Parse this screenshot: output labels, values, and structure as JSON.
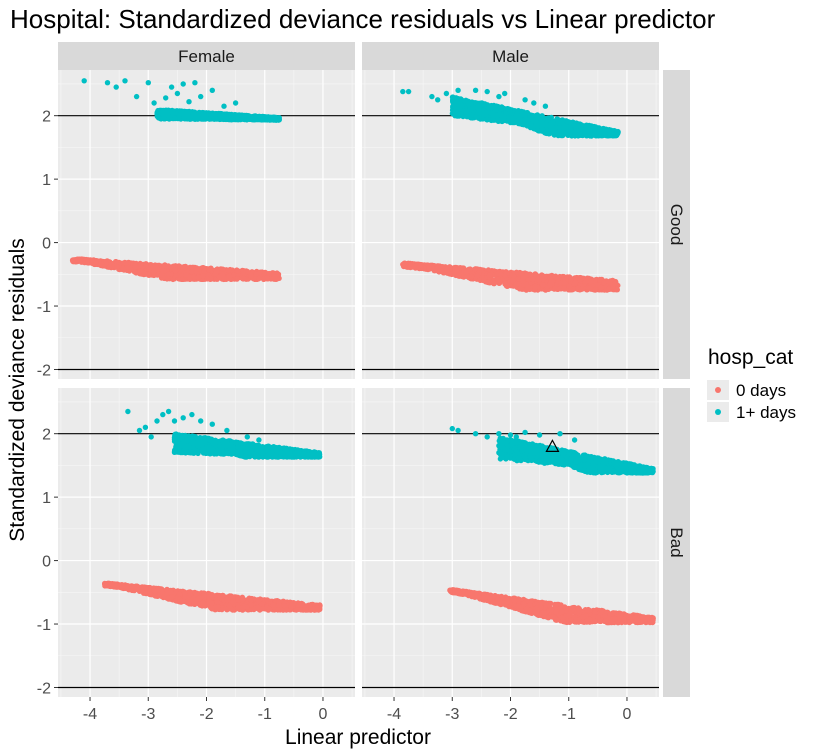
{
  "chart_data": {
    "type": "scatter",
    "title": "Hospital: Standardized deviance residuals vs Linear predictor",
    "xlabel": "Linear predictor",
    "ylabel": "Standardized deviance residuals",
    "xlim": [
      -4.55,
      0.55
    ],
    "ylim": [
      -2.15,
      2.72
    ],
    "x_ticks": [
      -4,
      -3,
      -2,
      -1,
      0
    ],
    "y_ticks": [
      -2,
      -1,
      0,
      1,
      2
    ],
    "reference_lines_y": [
      -2,
      2
    ],
    "col_facets": [
      "Female",
      "Male"
    ],
    "row_facets": [
      "Good",
      "Bad"
    ],
    "legend": {
      "title": "hosp_cat",
      "position": "right",
      "entries": [
        {
          "label": "0 days",
          "color": "#F8766D"
        },
        {
          "label": "1+ days",
          "color": "#00BFC4"
        }
      ]
    },
    "panels": [
      {
        "col": "Female",
        "row": "Good",
        "series": [
          {
            "name": "0 days",
            "color": "#F8766D",
            "band": {
              "x": [
                -4.3,
                -0.75
              ],
              "y_top": [
                -0.25,
                -0.48
              ],
              "y_bottom": [
                -0.3,
                -0.58
              ],
              "bottom_floor": -0.58
            }
          },
          {
            "name": "1+ days",
            "color": "#00BFC4",
            "band": {
              "x": [
                -2.85,
                -0.75
              ],
              "y_top": [
                2.1,
                1.97
              ],
              "y_bottom": [
                1.95,
                1.93
              ]
            },
            "outliers": [
              [
                -4.1,
                2.55
              ],
              [
                -3.7,
                2.52
              ],
              [
                -3.55,
                2.45
              ],
              [
                -3.4,
                2.55
              ],
              [
                -3.2,
                2.3
              ],
              [
                -3.0,
                2.52
              ],
              [
                -2.9,
                2.2
              ],
              [
                -2.6,
                2.45
              ],
              [
                -2.5,
                2.35
              ],
              [
                -2.4,
                2.5
              ],
              [
                -2.2,
                2.52
              ],
              [
                -2.1,
                2.3
              ],
              [
                -1.9,
                2.4
              ],
              [
                -1.7,
                2.15
              ],
              [
                -1.5,
                2.2
              ],
              [
                -2.7,
                2.28
              ],
              [
                -2.3,
                2.22
              ]
            ]
          }
        ]
      },
      {
        "col": "Male",
        "row": "Good",
        "series": [
          {
            "name": "0 days",
            "color": "#F8766D",
            "band": {
              "x": [
                -3.85,
                -0.15
              ],
              "y_top": [
                -0.32,
                -0.6
              ],
              "y_bottom": [
                -0.38,
                -0.75
              ],
              "bottom_floor": -0.75
            }
          },
          {
            "name": "1+ days",
            "color": "#00BFC4",
            "band": {
              "x": [
                -3.0,
                -0.15
              ],
              "y_top": [
                2.3,
                1.75
              ],
              "y_bottom": [
                2.0,
                1.68
              ],
              "bottom_floor": 1.68
            },
            "outliers": [
              [
                -3.85,
                2.38
              ],
              [
                -3.75,
                2.38
              ],
              [
                -3.35,
                2.3
              ],
              [
                -3.25,
                2.25
              ],
              [
                -3.1,
                2.35
              ],
              [
                -2.9,
                2.4
              ],
              [
                -2.6,
                2.4
              ],
              [
                -2.4,
                2.38
              ],
              [
                -2.2,
                2.3
              ],
              [
                -2.1,
                2.35
              ],
              [
                -1.75,
                2.25
              ],
              [
                -1.6,
                2.2
              ],
              [
                -1.4,
                2.15
              ],
              [
                -1.2,
                1.95
              ]
            ]
          }
        ]
      },
      {
        "col": "Female",
        "row": "Bad",
        "series": [
          {
            "name": "0 days",
            "color": "#F8766D",
            "band": {
              "x": [
                -3.75,
                -0.05
              ],
              "y_top": [
                -0.35,
                -0.7
              ],
              "y_bottom": [
                -0.4,
                -0.78
              ],
              "bottom_floor": -0.78
            }
          },
          {
            "name": "1+ days",
            "color": "#00BFC4",
            "band": {
              "x": [
                -2.55,
                -0.05
              ],
              "y_top": [
                2.0,
                1.7
              ],
              "y_bottom": [
                1.7,
                1.63
              ],
              "bottom_floor": 1.63
            },
            "outliers": [
              [
                -3.35,
                2.35
              ],
              [
                -3.15,
                2.05
              ],
              [
                -3.05,
                2.1
              ],
              [
                -2.95,
                1.95
              ],
              [
                -2.85,
                2.2
              ],
              [
                -2.75,
                2.3
              ],
              [
                -2.65,
                2.35
              ],
              [
                -2.55,
                2.2
              ],
              [
                -2.4,
                2.25
              ],
              [
                -2.25,
                2.3
              ],
              [
                -2.1,
                2.2
              ],
              [
                -1.9,
                2.15
              ],
              [
                -1.65,
                2.05
              ],
              [
                -1.3,
                1.95
              ],
              [
                -1.1,
                1.9
              ]
            ]
          }
        ]
      },
      {
        "col": "Male",
        "row": "Bad",
        "series": [
          {
            "name": "0 days",
            "color": "#F8766D",
            "band": {
              "x": [
                -3.05,
                0.45
              ],
              "y_top": [
                -0.45,
                -0.9
              ],
              "y_bottom": [
                -0.5,
                -0.98
              ],
              "bottom_floor": -0.98
            }
          },
          {
            "name": "1+ days",
            "color": "#00BFC4",
            "band": {
              "x": [
                -2.2,
                0.45
              ],
              "y_top": [
                1.95,
                1.45
              ],
              "y_bottom": [
                1.6,
                1.38
              ],
              "bottom_floor": 1.38
            },
            "outliers": [
              [
                -3.0,
                2.08
              ],
              [
                -2.9,
                2.05
              ],
              [
                -2.6,
                2.0
              ],
              [
                -2.4,
                1.95
              ],
              [
                -2.2,
                2.0
              ],
              [
                -2.0,
                1.98
              ],
              [
                -1.9,
                1.95
              ],
              [
                -1.75,
                2.02
              ],
              [
                -1.5,
                1.98
              ],
              [
                -1.15,
                2.0
              ],
              [
                -0.9,
                1.9
              ]
            ]
          }
        ],
        "marker": {
          "shape": "triangle",
          "x": -1.28,
          "y": 1.8
        }
      }
    ]
  }
}
